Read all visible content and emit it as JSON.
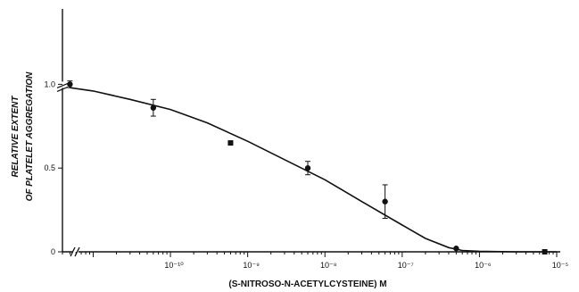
{
  "chart_data": {
    "type": "scatter",
    "title": "",
    "xlabel": "(S-NITROSO-N-ACETYLCYSTEINE) M",
    "ylabel_lines": [
      "RELATIVE EXTENT",
      "OF PLATELET AGGREGATION"
    ],
    "x_scale": "log",
    "xlim": [
      4e-12,
      1e-05
    ],
    "ylim": [
      0,
      1.45
    ],
    "x_tick_labels": [
      {
        "value": 1e-10,
        "label": "10⁻¹⁰"
      },
      {
        "value": 1e-09,
        "label": "10⁻⁹"
      },
      {
        "value": 1e-08,
        "label": "10⁻⁸"
      },
      {
        "value": 1e-07,
        "label": "10⁻⁷"
      },
      {
        "value": 1e-06,
        "label": "10⁻⁶"
      },
      {
        "value": 1e-05,
        "label": "10⁻⁵"
      }
    ],
    "y_ticks": [
      {
        "value": 0,
        "label": "0"
      },
      {
        "value": 0.5,
        "label": "0.5"
      },
      {
        "value": 1.0,
        "label": "1.0"
      }
    ],
    "axis_breaks": {
      "x": true,
      "y": true
    },
    "points": [
      {
        "x": 5e-12,
        "y": 1.0,
        "err": 0.02,
        "marker": "circle"
      },
      {
        "x": 6e-11,
        "y": 0.86,
        "err": 0.05,
        "marker": "circle"
      },
      {
        "x": 6e-10,
        "y": 0.65,
        "err": 0.0,
        "marker": "square"
      },
      {
        "x": 6e-09,
        "y": 0.5,
        "err": 0.04,
        "marker": "circle"
      },
      {
        "x": 6e-08,
        "y": 0.3,
        "err": 0.1,
        "marker": "circle"
      },
      {
        "x": 5e-07,
        "y": 0.02,
        "err": 0.0,
        "marker": "circle"
      },
      {
        "x": 7e-06,
        "y": 0.0,
        "err": 0.0,
        "marker": "square"
      }
    ],
    "fit_curve": {
      "x": [
        5e-12,
        1e-11,
        3e-11,
        1e-10,
        3e-10,
        1e-09,
        3e-09,
        1e-08,
        3e-08,
        1e-07,
        2e-07,
        4e-07,
        6e-07,
        1e-06,
        3e-06,
        1e-05
      ],
      "y": [
        0.98,
        0.96,
        0.91,
        0.85,
        0.77,
        0.66,
        0.55,
        0.43,
        0.3,
        0.16,
        0.08,
        0.025,
        0.008,
        0.003,
        0.0,
        0.0
      ]
    },
    "grid": false,
    "legend": "none",
    "colors": {
      "ink": "#111111",
      "background": "#ffffff"
    }
  }
}
